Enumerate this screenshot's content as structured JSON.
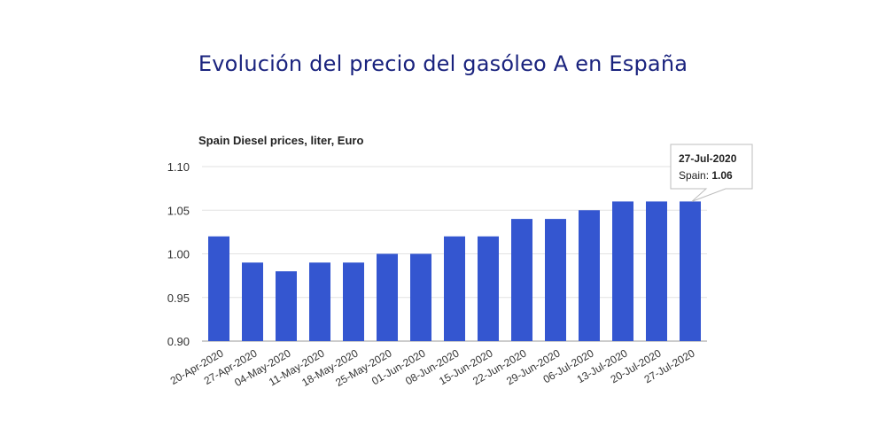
{
  "page": {
    "title": "Evolución del precio del gasóleo A en España"
  },
  "chart_data": {
    "type": "bar",
    "subtitle": "Spain Diesel prices, liter, Euro",
    "categories": [
      "20-Apr-2020",
      "27-Apr-2020",
      "04-May-2020",
      "11-May-2020",
      "18-May-2020",
      "25-May-2020",
      "01-Jun-2020",
      "08-Jun-2020",
      "15-Jun-2020",
      "22-Jun-2020",
      "29-Jun-2020",
      "06-Jul-2020",
      "13-Jul-2020",
      "20-Jul-2020",
      "27-Jul-2020"
    ],
    "series": [
      {
        "name": "Spain",
        "values": [
          1.02,
          0.99,
          0.98,
          0.99,
          0.99,
          1.0,
          1.0,
          1.02,
          1.02,
          1.04,
          1.04,
          1.05,
          1.06,
          1.06,
          1.06
        ]
      }
    ],
    "ylim": [
      0.9,
      1.1
    ],
    "yticks": [
      "0.90",
      "0.95",
      "1.00",
      "1.05",
      "1.10"
    ],
    "grid": true,
    "bar_color": "#3456d0",
    "title_color": "#1a237e",
    "tooltip": {
      "date": "27-Jul-2020",
      "label": "Spain: ",
      "value": "1.06"
    }
  }
}
